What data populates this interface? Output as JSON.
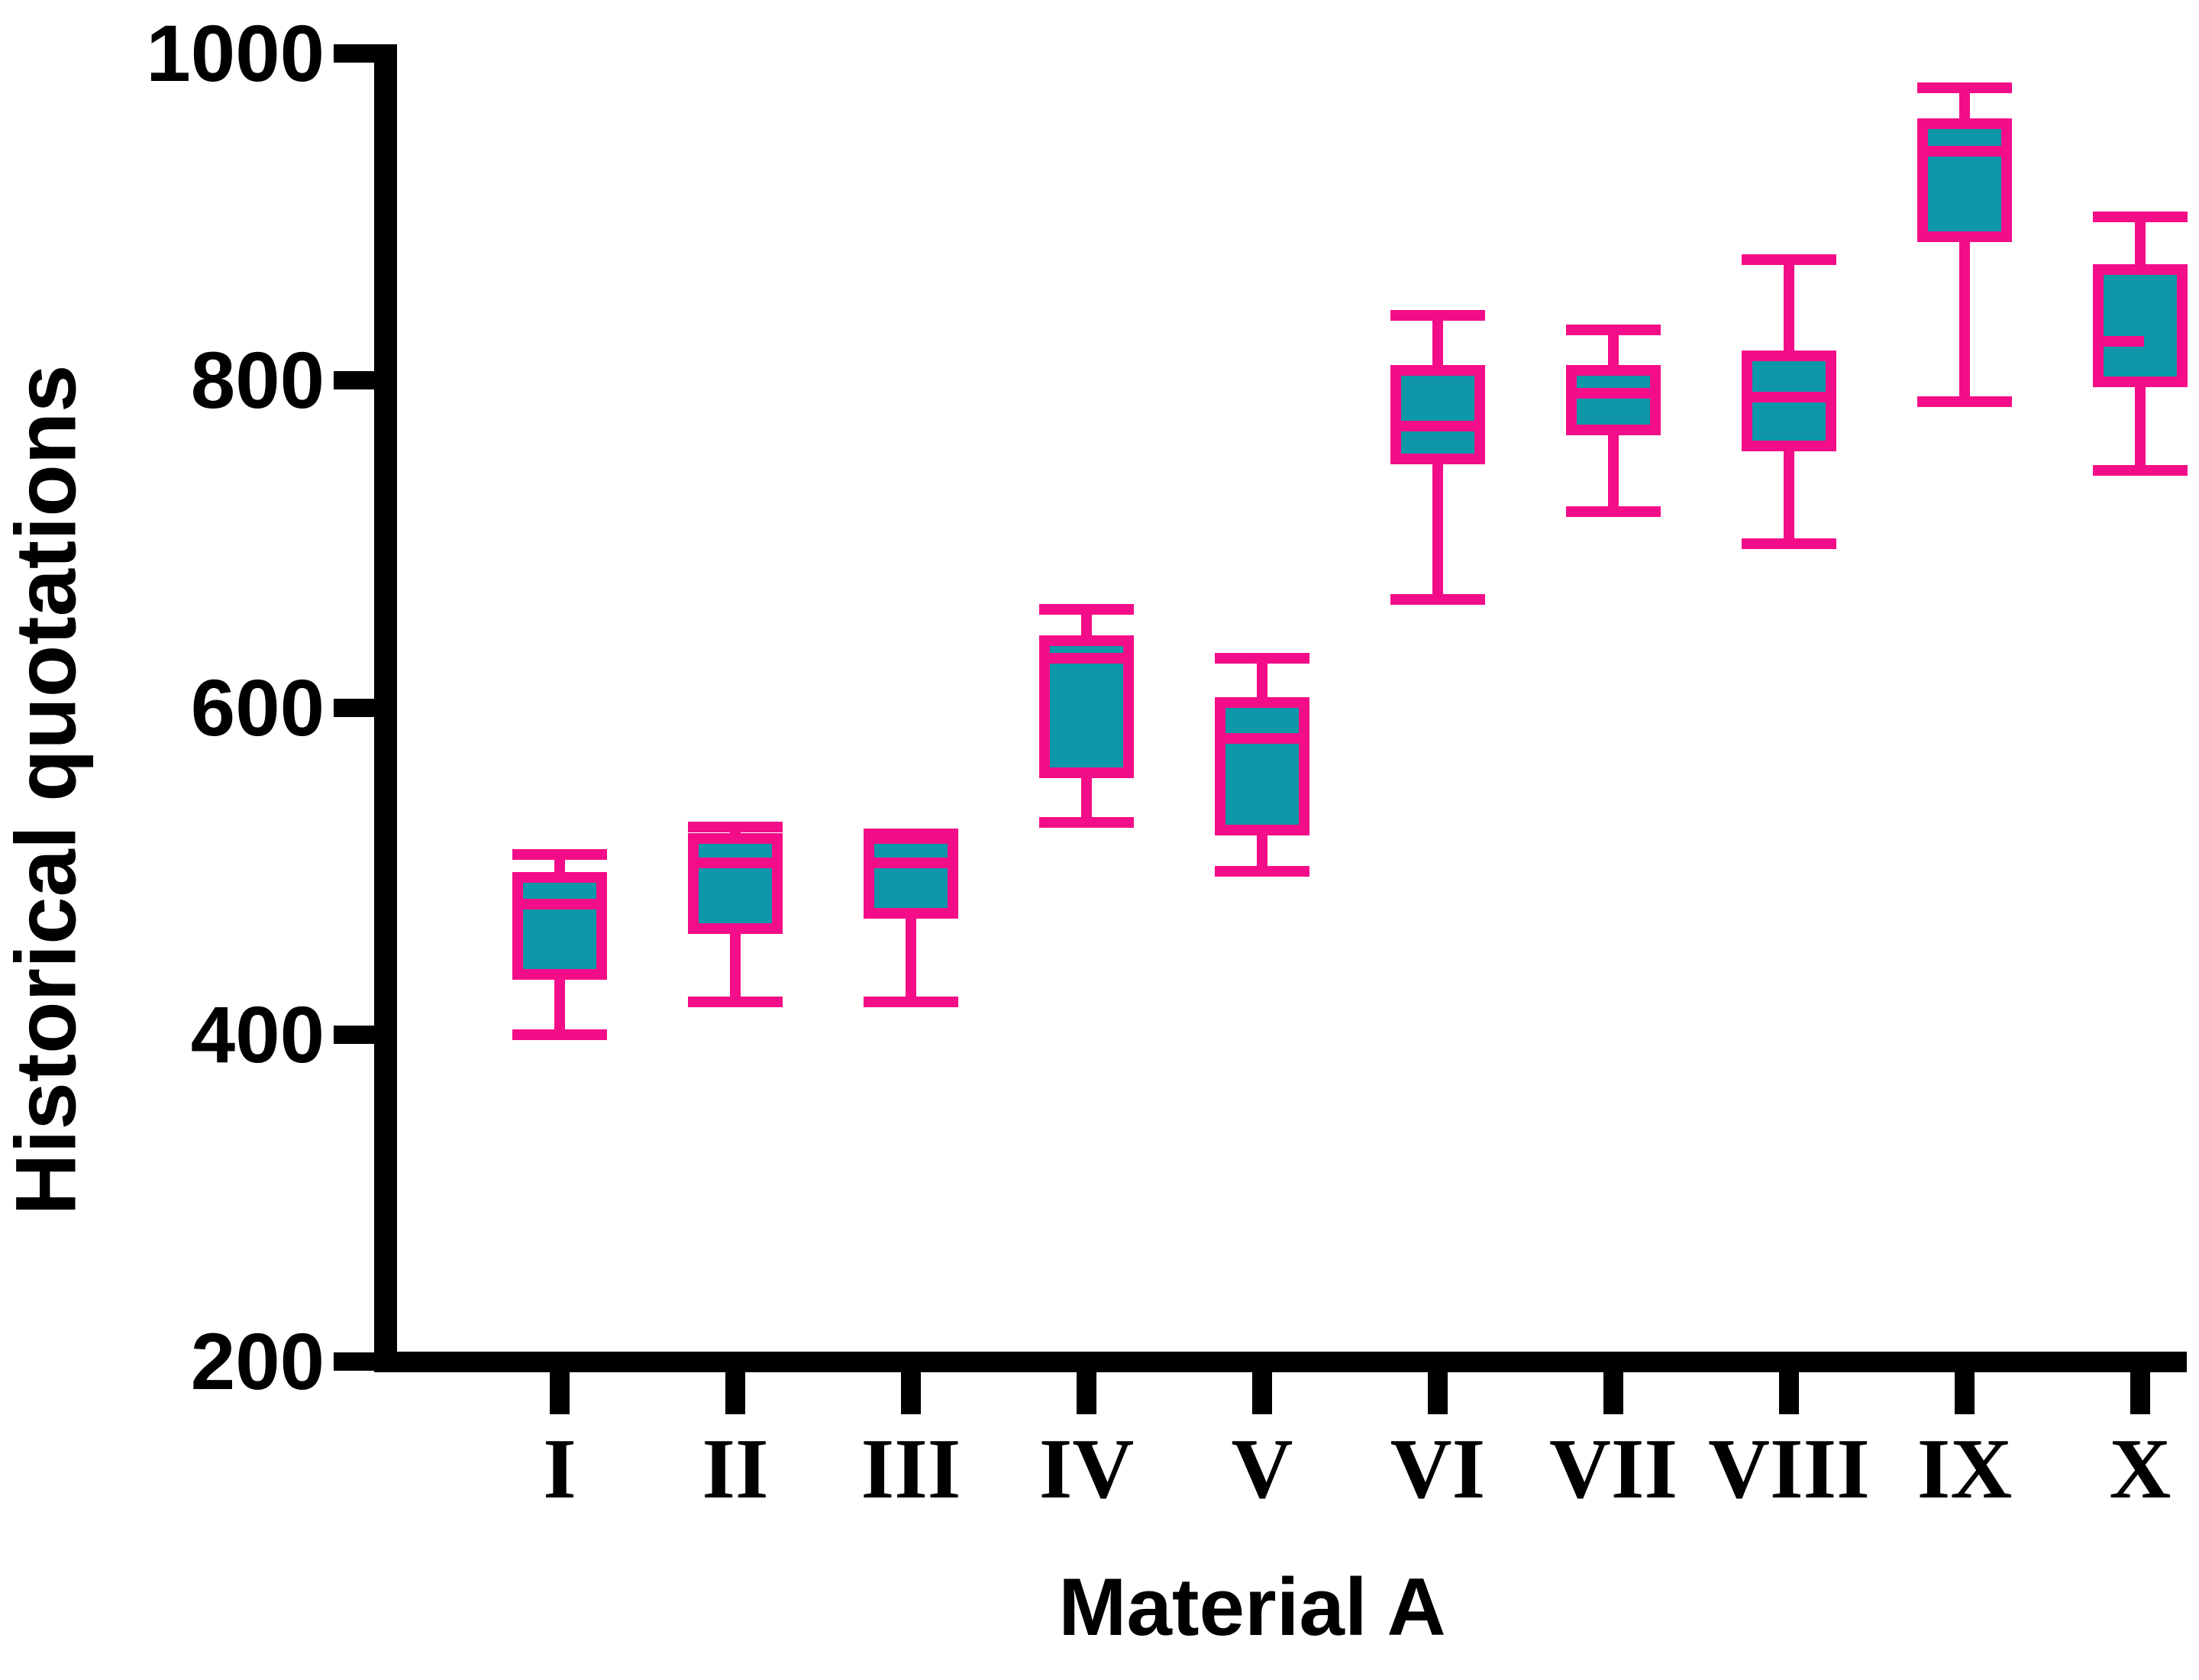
{
  "chart_data": {
    "type": "box",
    "title": "",
    "xlabel": "Material A",
    "ylabel": "Historical quotations",
    "ylim": [
      200,
      1000
    ],
    "yticks": [
      1000,
      800,
      600,
      400,
      200
    ],
    "grid": false,
    "legend": "none",
    "categories": [
      "I",
      "II",
      "III",
      "IV",
      "V",
      "VI",
      "VII",
      "VIII",
      "IX",
      "X"
    ],
    "series": [
      {
        "label": "I",
        "min": 400,
        "q1": 437,
        "median": 480,
        "q3": 496,
        "max": 510
      },
      {
        "label": "II",
        "min": 420,
        "q1": 465,
        "median": 505,
        "q3": 520,
        "max": 527
      },
      {
        "label": "III",
        "min": 420,
        "q1": 474,
        "median": 505,
        "q3": 520,
        "max": 523
      },
      {
        "label": "IV",
        "min": 530,
        "q1": 560,
        "median": 630,
        "q3": 641,
        "max": 660
      },
      {
        "label": "V",
        "min": 500,
        "q1": 525,
        "median": 581,
        "q3": 603,
        "max": 630
      },
      {
        "label": "VI",
        "min": 666,
        "q1": 752,
        "median": 772,
        "q3": 806,
        "max": 840
      },
      {
        "label": "VII",
        "min": 720,
        "q1": 770,
        "median": 792,
        "q3": 806,
        "max": 831
      },
      {
        "label": "VIII",
        "min": 700,
        "q1": 760,
        "median": 790,
        "q3": 815,
        "max": 874
      },
      {
        "label": "IX",
        "min": 787,
        "q1": 888,
        "median": 940,
        "q3": 957,
        "max": 979
      },
      {
        "label": "X",
        "min": 745,
        "q1": 799,
        "median": 824,
        "q3": 868,
        "max": 900,
        "median_partial": "left-half"
      }
    ],
    "colors": {
      "box_fill": "#0D97A8",
      "box_stroke": "#F40D88",
      "axis": "#000000",
      "text": "#000000"
    }
  }
}
